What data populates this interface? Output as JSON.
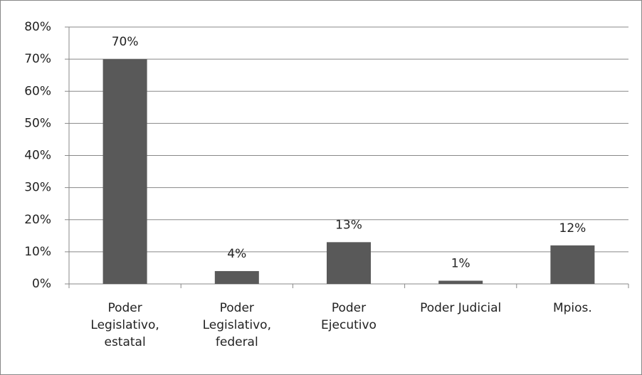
{
  "chart_data": {
    "type": "bar",
    "categories": [
      "Poder Legislativo, estatal",
      "Poder Legislativo, federal",
      "Poder Ejecutivo",
      "Poder Judicial",
      "Mpios."
    ],
    "values": [
      70,
      4,
      13,
      1,
      12
    ],
    "value_labels": [
      "70%",
      "4%",
      "13%",
      "1%",
      "12%"
    ],
    "color": "#595959",
    "ylim": [
      0,
      80
    ],
    "yticks": [
      {
        "value": 0,
        "label": "0%"
      },
      {
        "value": 10,
        "label": "10%"
      },
      {
        "value": 20,
        "label": "20%"
      },
      {
        "value": 30,
        "label": "30%"
      },
      {
        "value": 40,
        "label": "40%"
      },
      {
        "value": 50,
        "label": "50%"
      },
      {
        "value": 60,
        "label": "60%"
      },
      {
        "value": 70,
        "label": "70%"
      },
      {
        "value": 80,
        "label": "80%"
      }
    ],
    "grid": true
  }
}
